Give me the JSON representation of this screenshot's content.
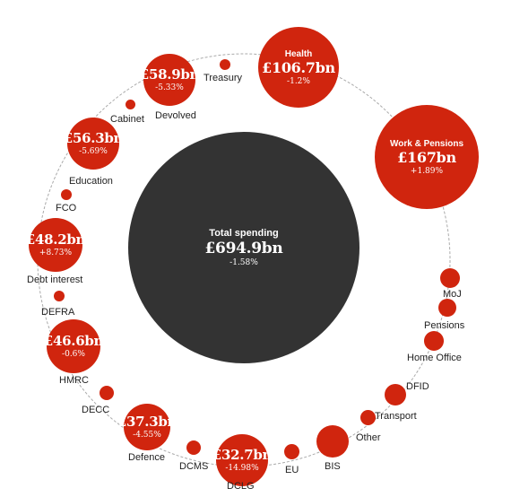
{
  "colors": {
    "department": "#d0250e",
    "total": "#333333",
    "ring": "#aaaaaa"
  },
  "total": {
    "title": "Total spending",
    "amount": "£694.9bn",
    "change": "-1.58%"
  },
  "departments": [
    {
      "label": "Health",
      "amount": "£106.7bn",
      "change": "-1.2%"
    },
    {
      "label": "Work & Pensions",
      "amount": "£167bn",
      "change": "+1.89%"
    },
    {
      "label": "MoJ"
    },
    {
      "label": "Pensions"
    },
    {
      "label": "Home Office"
    },
    {
      "label": "DFID"
    },
    {
      "label": "Transport"
    },
    {
      "label": "Other"
    },
    {
      "label": "BIS"
    },
    {
      "label": "EU"
    },
    {
      "label": "DCLG",
      "amount": "£32.7bn",
      "change": "-14.98%"
    },
    {
      "label": "DCMS"
    },
    {
      "label": "Defence",
      "amount": "£37.3bn",
      "change": "-4.55%"
    },
    {
      "label": "DECC"
    },
    {
      "label": "HMRC",
      "amount": "£46.6bn",
      "change": "-0.6%"
    },
    {
      "label": "DEFRA"
    },
    {
      "label": "Debt interest",
      "amount": "£48.2bn",
      "change": "+8.73%"
    },
    {
      "label": "FCO"
    },
    {
      "label": "Education",
      "amount": "£56.3bn",
      "change": "-5.69%"
    },
    {
      "label": "Cabinet"
    },
    {
      "label": "Devolved",
      "amount": "£58.9bn",
      "change": "-5.33%"
    },
    {
      "label": "Treasury"
    }
  ]
}
